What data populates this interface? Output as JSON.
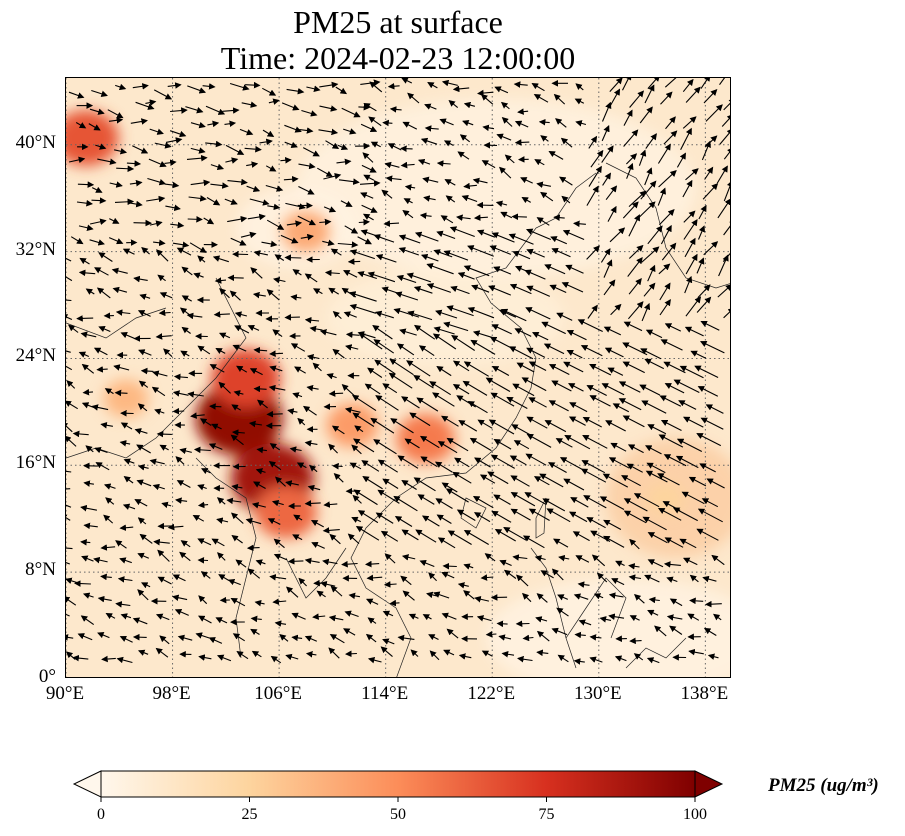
{
  "title": {
    "line1": "PM25 at surface",
    "line2": "Time: 2024-02-23 12:00:00"
  },
  "map": {
    "projection": "PlateCarree",
    "lon_range": [
      90,
      140
    ],
    "lat_range": [
      0,
      45
    ],
    "x_ticks": [
      "90°E",
      "98°E",
      "106°E",
      "114°E",
      "122°E",
      "130°E",
      "138°E"
    ],
    "y_ticks": [
      "0°",
      "8°N",
      "16°N",
      "24°N",
      "32°N",
      "40°N"
    ],
    "x_tick_values": [
      90,
      98,
      106,
      114,
      122,
      130,
      138
    ],
    "y_tick_values": [
      0,
      8,
      16,
      24,
      32,
      40
    ],
    "gridlines": "dotted",
    "coastlines": true,
    "wind_vectors": true
  },
  "colorbar": {
    "label": "PM25 (ug/m³)",
    "cmap": "OrRd",
    "ticks": [
      "0",
      "25",
      "50",
      "75",
      "100"
    ],
    "tick_values": [
      0,
      25,
      50,
      75,
      100
    ],
    "extend": "both",
    "colors": [
      "#fff7ec",
      "#fdd49e",
      "#fc8d59",
      "#d7301f",
      "#7f0000"
    ]
  },
  "hotspots": [
    {
      "lon": 103,
      "lat": 19.5,
      "value": 95
    },
    {
      "lon": 105.5,
      "lat": 15,
      "value": 90
    },
    {
      "lon": 103.5,
      "lat": 22.5,
      "value": 70
    },
    {
      "lon": 106.5,
      "lat": 12.5,
      "value": 60
    },
    {
      "lon": 91.5,
      "lat": 40.5,
      "value": 65
    },
    {
      "lon": 117,
      "lat": 18,
      "value": 55
    },
    {
      "lon": 111.5,
      "lat": 19,
      "value": 45
    },
    {
      "lon": 108,
      "lat": 33.5,
      "value": 40
    },
    {
      "lon": 94.5,
      "lat": 21,
      "value": 35
    },
    {
      "lon": 135,
      "lat": 13.5,
      "value": 25
    }
  ]
}
